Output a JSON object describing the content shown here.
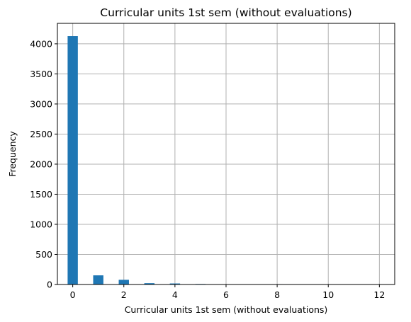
{
  "chart_data": {
    "type": "bar",
    "title": "Curricular units 1st sem (without evaluations)",
    "xlabel": "Curricular units 1st sem (without evaluations)",
    "ylabel": "Frequency",
    "xlim": [
      -0.6,
      12.6
    ],
    "ylim": [
      0,
      4340
    ],
    "xticks": [
      0,
      2,
      4,
      6,
      8,
      10,
      12
    ],
    "yticks": [
      0,
      500,
      1000,
      1500,
      2000,
      2500,
      3000,
      3500,
      4000
    ],
    "bin_width": 0.4,
    "grid": true,
    "color": "#1f77b4",
    "bins": [
      {
        "x": 0,
        "value": 4128
      },
      {
        "x": 1,
        "value": 152
      },
      {
        "x": 2,
        "value": 78
      },
      {
        "x": 3,
        "value": 22
      },
      {
        "x": 4,
        "value": 17
      },
      {
        "x": 5,
        "value": 8
      },
      {
        "x": 6,
        "value": 4
      },
      {
        "x": 7,
        "value": 4
      },
      {
        "x": 8,
        "value": 6
      },
      {
        "x": 10,
        "value": 1
      },
      {
        "x": 12,
        "value": 1
      }
    ]
  }
}
